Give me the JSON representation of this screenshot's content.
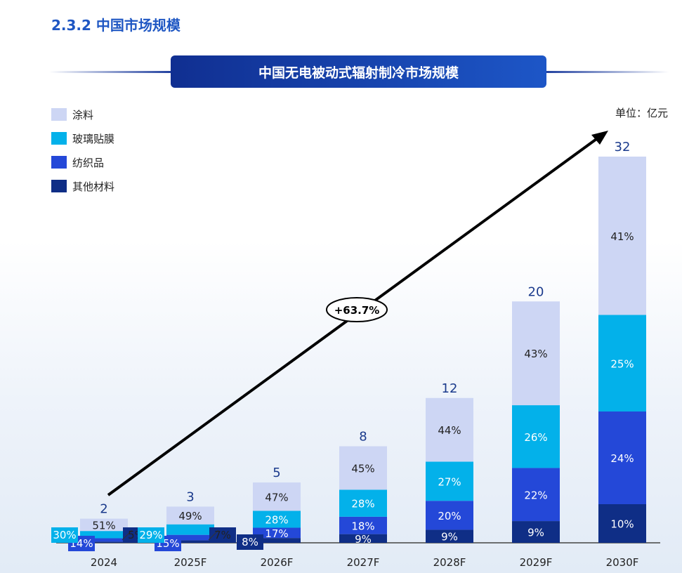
{
  "section_title": "2.3.2  中国市场规模",
  "chart_title": "中国无电被动式辐射制冷市场规模",
  "unit_label": "单位：亿元",
  "chart_data": {
    "type": "bar",
    "stacked": true,
    "title": "中国无电被动式辐射制冷市场规模",
    "categories": [
      "2024",
      "2025F",
      "2026F",
      "2027F",
      "2028F",
      "2029F",
      "2030F"
    ],
    "totals": [
      2,
      3,
      5,
      8,
      12,
      20,
      32
    ],
    "series": [
      {
        "name": "其他材料",
        "color": "#0f2e86",
        "percent": [
          5,
          7,
          8,
          9,
          9,
          9,
          10
        ]
      },
      {
        "name": "纺织品",
        "color": "#2448d8",
        "percent": [
          14,
          15,
          17,
          18,
          20,
          22,
          24
        ]
      },
      {
        "name": "玻璃贴膜",
        "color": "#03b1ea",
        "percent": [
          30,
          29,
          28,
          28,
          27,
          26,
          25
        ]
      },
      {
        "name": "涂料",
        "color": "#cdd6f4",
        "percent": [
          51,
          49,
          47,
          45,
          44,
          43,
          41
        ]
      }
    ],
    "legend_order": [
      "涂料",
      "玻璃贴膜",
      "纺织品",
      "其他材料"
    ],
    "annotation": "+63.7%",
    "legend_position": "top-left",
    "grid": false
  }
}
